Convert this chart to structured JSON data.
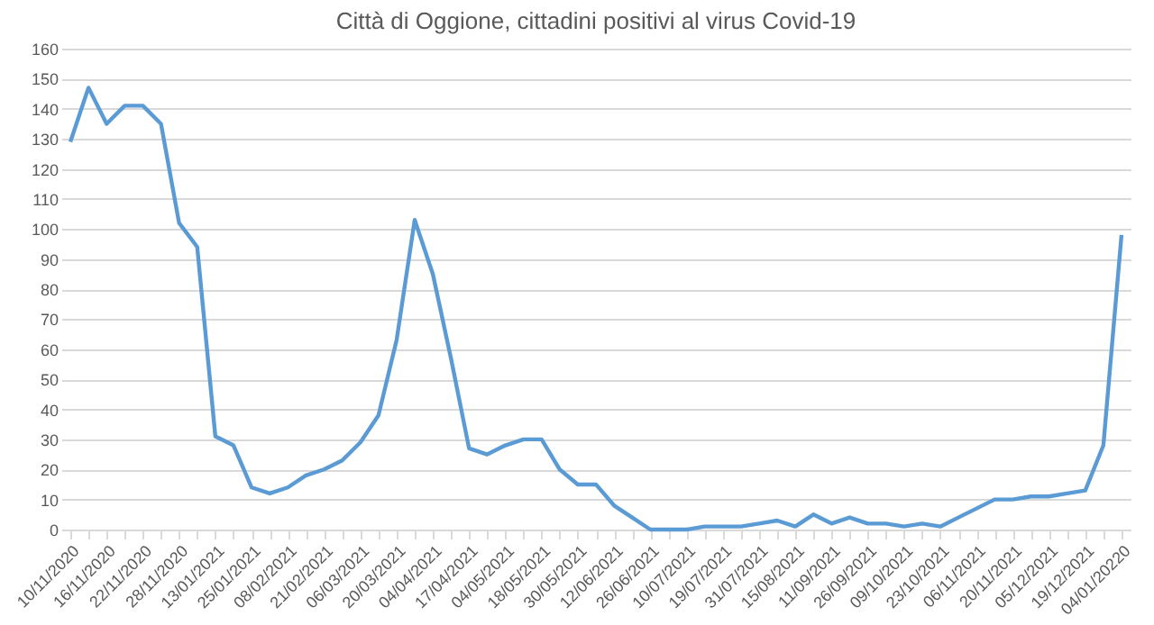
{
  "chart_data": {
    "type": "line",
    "title": "Città di Oggione, cittadini positivi al virus Covid-19",
    "categories": [
      "10/11/2020",
      null,
      "16/11/2020",
      null,
      "22/11/2020",
      null,
      "28/11/2020",
      null,
      "13/01/2021",
      null,
      "25/01/2021",
      null,
      "08/02/2021",
      null,
      "21/02/2021",
      null,
      "06/03/2021",
      null,
      "20/03/2021",
      null,
      "04/04/2021",
      null,
      "17/04/2021",
      null,
      "04/05/2021",
      null,
      "18/05/2021",
      null,
      "30/05/2021",
      null,
      "12/06/2021",
      null,
      "26/06/2021",
      null,
      "10/07/2021",
      null,
      "19/07/2021",
      null,
      "31/07/2021",
      null,
      "15/08/2021",
      null,
      "11/09/2021",
      null,
      "26/09/2021",
      null,
      "09/10/2021",
      null,
      "23/10/2021",
      null,
      "06/11/2021",
      null,
      "20/11/2021",
      null,
      "05/12/2021",
      null,
      "19/12/2021",
      null,
      "04/01/20220"
    ],
    "series": [
      {
        "color": "#5b9bd5",
        "values": [
          129,
          147,
          135,
          141,
          141,
          135,
          102,
          94,
          31,
          28,
          14,
          12,
          14,
          18,
          20,
          23,
          29,
          38,
          63,
          103,
          85,
          57,
          27,
          25,
          28,
          30,
          30,
          20,
          15,
          15,
          8,
          4,
          0,
          0,
          0,
          1,
          1,
          1,
          2,
          3,
          1,
          5,
          2,
          4,
          2,
          2,
          1,
          2,
          1,
          4,
          7,
          10,
          10,
          11,
          11,
          12,
          13,
          28,
          98
        ]
      }
    ],
    "ylim": [
      0,
      160
    ],
    "yticks": [
      0,
      10,
      20,
      30,
      40,
      50,
      60,
      70,
      80,
      90,
      100,
      110,
      120,
      130,
      140,
      150,
      160
    ],
    "grid": "y",
    "marker": "none",
    "line_style": "solid"
  }
}
